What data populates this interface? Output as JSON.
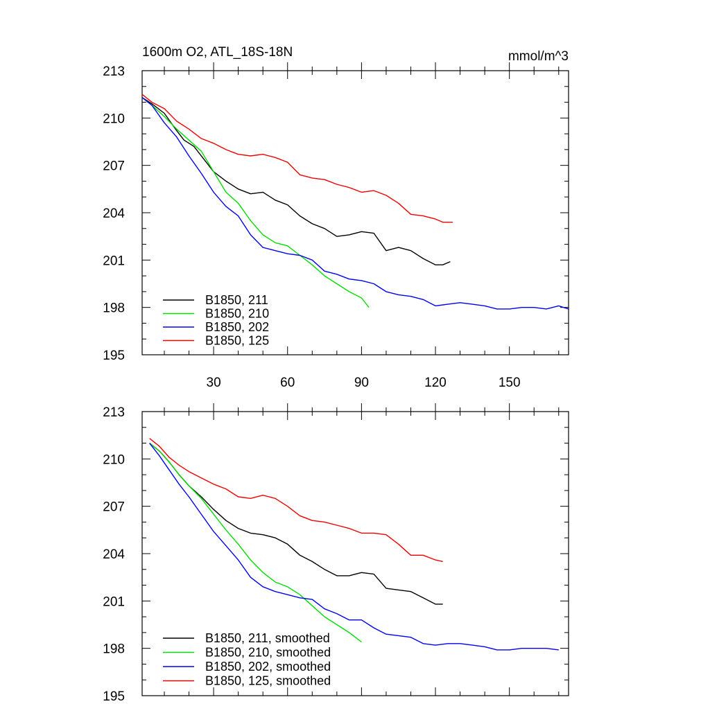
{
  "chart_data": [
    {
      "type": "line",
      "title": "1600m O2, ATL_18S-18N",
      "units": "mmol/m^3",
      "xlabel": "",
      "ylabel": "",
      "xlim": [
        1,
        174
      ],
      "ylim": [
        195,
        213
      ],
      "xticks": [
        30,
        60,
        90,
        120,
        150
      ],
      "xtick_labels": [
        "30",
        "60",
        "90",
        "120",
        "150"
      ],
      "yticks": [
        195,
        198,
        201,
        204,
        207,
        210,
        213
      ],
      "ytick_labels": [
        "195",
        "198",
        "201",
        "204",
        "207",
        "210",
        "213"
      ],
      "grid": false,
      "legend_position": "bottom-left",
      "series": [
        {
          "name": "B1850, 211",
          "color": "#000000",
          "x": [
            1,
            5,
            10,
            15,
            18,
            22,
            26,
            30,
            35,
            40,
            45,
            50,
            55,
            60,
            65,
            70,
            75,
            80,
            85,
            90,
            95,
            100,
            105,
            110,
            115,
            120,
            123,
            126
          ],
          "y": [
            211.3,
            210.9,
            210.3,
            209.2,
            208.6,
            208.2,
            207.4,
            206.6,
            206.0,
            205.5,
            205.2,
            205.3,
            204.8,
            204.5,
            203.8,
            203.3,
            203.0,
            202.5,
            202.6,
            202.8,
            202.7,
            201.6,
            201.8,
            201.6,
            201.1,
            200.7,
            200.7,
            200.9
          ]
        },
        {
          "name": "B1850, 210",
          "color": "#00dd00",
          "x": [
            1,
            5,
            10,
            15,
            20,
            25,
            30,
            35,
            40,
            45,
            50,
            55,
            60,
            65,
            70,
            75,
            80,
            85,
            90,
            93
          ],
          "y": [
            211.3,
            210.8,
            210.1,
            209.3,
            208.6,
            207.9,
            206.6,
            205.3,
            204.6,
            203.5,
            202.6,
            202.1,
            201.9,
            201.3,
            200.7,
            200.0,
            199.5,
            199.0,
            198.6,
            198.0
          ]
        },
        {
          "name": "B1850, 202",
          "color": "#0000ee",
          "x": [
            1,
            5,
            10,
            15,
            20,
            25,
            30,
            35,
            40,
            45,
            50,
            55,
            60,
            65,
            70,
            75,
            80,
            85,
            90,
            95,
            100,
            105,
            110,
            115,
            120,
            125,
            130,
            135,
            140,
            145,
            150,
            155,
            160,
            165,
            170,
            174
          ],
          "y": [
            211.3,
            210.8,
            209.7,
            208.8,
            207.6,
            206.5,
            205.3,
            204.4,
            203.8,
            202.6,
            201.8,
            201.6,
            201.4,
            201.3,
            201.0,
            200.3,
            200.1,
            199.8,
            199.7,
            199.5,
            199.0,
            198.8,
            198.7,
            198.5,
            198.1,
            198.2,
            198.3,
            198.2,
            198.1,
            197.9,
            197.9,
            198.0,
            198.0,
            197.9,
            198.1,
            197.9
          ]
        },
        {
          "name": "B1850, 125",
          "color": "#ee0000",
          "x": [
            1,
            5,
            10,
            15,
            20,
            25,
            30,
            35,
            40,
            45,
            50,
            55,
            60,
            65,
            70,
            75,
            80,
            85,
            90,
            95,
            100,
            105,
            110,
            115,
            120,
            123,
            127
          ],
          "y": [
            211.5,
            211.0,
            210.6,
            209.8,
            209.3,
            208.7,
            208.4,
            208.0,
            207.7,
            207.6,
            207.7,
            207.5,
            207.2,
            206.4,
            206.2,
            206.1,
            205.8,
            205.6,
            205.3,
            205.4,
            205.1,
            204.6,
            203.9,
            203.8,
            203.6,
            203.4,
            203.4
          ]
        }
      ]
    },
    {
      "type": "line",
      "title": "",
      "xlabel": "",
      "ylabel": "",
      "xlim": [
        1,
        174
      ],
      "ylim": [
        195,
        213
      ],
      "xticks": [
        30,
        60,
        90,
        120,
        150
      ],
      "xtick_labels": [],
      "yticks": [
        195,
        198,
        201,
        204,
        207,
        210,
        213
      ],
      "ytick_labels": [
        "195",
        "198",
        "201",
        "204",
        "207",
        "210",
        "213"
      ],
      "grid": false,
      "legend_position": "bottom-left",
      "series": [
        {
          "name": "B1850, 211, smoothed",
          "color": "#000000",
          "x": [
            4,
            8,
            12,
            16,
            20,
            25,
            30,
            35,
            40,
            45,
            50,
            55,
            60,
            65,
            70,
            75,
            80,
            85,
            90,
            95,
            100,
            105,
            110,
            115,
            120,
            123
          ],
          "y": [
            211.0,
            210.5,
            209.8,
            209.0,
            208.3,
            207.6,
            206.8,
            206.1,
            205.6,
            205.3,
            205.2,
            205.0,
            204.6,
            203.9,
            203.5,
            203.0,
            202.6,
            202.6,
            202.8,
            202.7,
            201.8,
            201.7,
            201.6,
            201.2,
            200.8,
            200.8
          ]
        },
        {
          "name": "B1850, 210, smoothed",
          "color": "#00dd00",
          "x": [
            4,
            8,
            12,
            16,
            20,
            25,
            30,
            35,
            40,
            45,
            50,
            55,
            60,
            65,
            70,
            75,
            80,
            85,
            90
          ],
          "y": [
            211.0,
            210.5,
            209.8,
            209.0,
            208.3,
            207.5,
            206.5,
            205.5,
            204.6,
            203.6,
            202.8,
            202.2,
            201.9,
            201.4,
            200.7,
            200.0,
            199.5,
            199.0,
            198.4
          ]
        },
        {
          "name": "B1850, 202, smoothed",
          "color": "#0000ee",
          "x": [
            4,
            8,
            12,
            16,
            20,
            25,
            30,
            35,
            40,
            45,
            50,
            55,
            60,
            65,
            70,
            75,
            80,
            85,
            90,
            95,
            100,
            105,
            110,
            115,
            120,
            125,
            130,
            135,
            140,
            145,
            150,
            155,
            160,
            165,
            170
          ],
          "y": [
            211.0,
            210.2,
            209.3,
            208.4,
            207.6,
            206.5,
            205.4,
            204.5,
            203.6,
            202.5,
            201.9,
            201.6,
            201.4,
            201.2,
            201.1,
            200.5,
            200.2,
            199.8,
            199.8,
            199.3,
            198.9,
            198.8,
            198.7,
            198.3,
            198.2,
            198.3,
            198.3,
            198.2,
            198.1,
            197.9,
            197.9,
            198.0,
            198.0,
            198.0,
            197.9
          ]
        },
        {
          "name": "B1850, 125, smoothed",
          "color": "#ee0000",
          "x": [
            4,
            8,
            12,
            16,
            20,
            25,
            30,
            35,
            40,
            45,
            50,
            55,
            60,
            65,
            70,
            75,
            80,
            85,
            90,
            95,
            100,
            105,
            110,
            115,
            120,
            123
          ],
          "y": [
            211.3,
            210.8,
            210.1,
            209.6,
            209.2,
            208.8,
            208.4,
            208.1,
            207.6,
            207.5,
            207.7,
            207.5,
            207.0,
            206.4,
            206.1,
            206.0,
            205.8,
            205.6,
            205.3,
            205.3,
            205.2,
            204.6,
            203.9,
            203.9,
            203.6,
            203.5
          ]
        }
      ]
    }
  ]
}
